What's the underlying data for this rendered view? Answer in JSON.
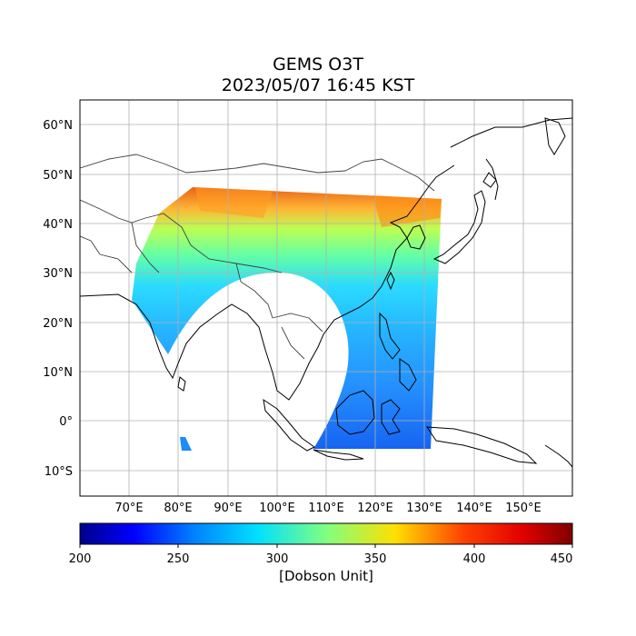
{
  "figure": {
    "title_line1": "GEMS O3T",
    "title_line2": "2023/05/07 16:45 KST"
  },
  "map": {
    "lon_ticks": [
      "70°E",
      "80°E",
      "90°E",
      "100°E",
      "110°E",
      "120°E",
      "130°E",
      "140°E",
      "150°E"
    ],
    "lat_ticks": [
      "60°N",
      "50°N",
      "40°N",
      "30°N",
      "20°N",
      "10°N",
      "0°",
      "10°S"
    ],
    "extent_lon": [
      60,
      160
    ],
    "extent_lat": [
      -15,
      65
    ],
    "gridlines": true,
    "coastlines": true,
    "borders": true
  },
  "colorbar": {
    "ticks": [
      "200",
      "250",
      "300",
      "350",
      "400",
      "450"
    ],
    "label": "[Dobson Unit]",
    "range": [
      200,
      450
    ],
    "colormap": "jet",
    "colors": {
      "v200": "#00008b",
      "v225": "#0000ff",
      "v260": "#0080ff",
      "v290": "#00e0ff",
      "v325": "#80ff80",
      "v360": "#ffe000",
      "v400": "#ff4000",
      "v450": "#800000"
    }
  }
}
